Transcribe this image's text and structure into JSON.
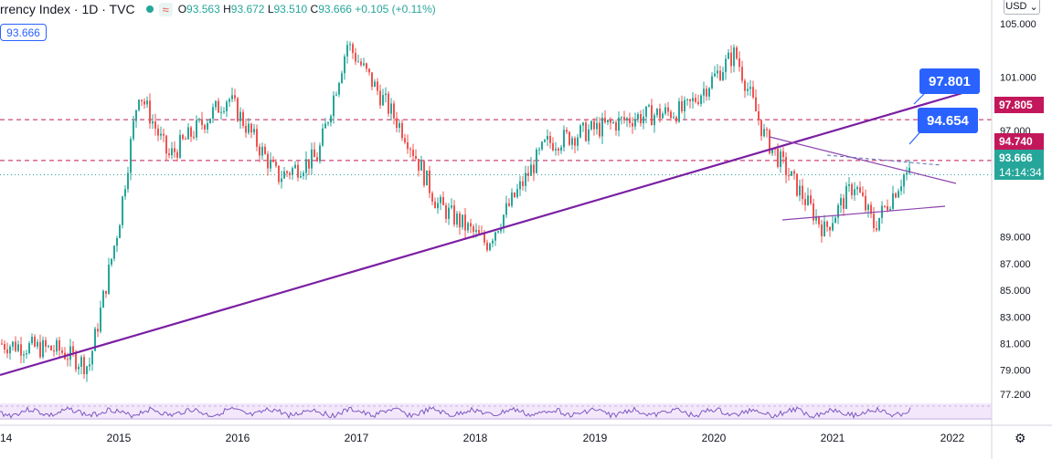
{
  "header": {
    "title": "rrency Index · 1D · TVC",
    "ohlc": {
      "open_label": "O",
      "open": "93.563",
      "high_label": "H",
      "high": "93.672",
      "low_label": "L",
      "low": "93.510",
      "close_label": "C",
      "close": "93.666",
      "change": "+0.105 (+0.11%)"
    },
    "last_value_badge": "93.666",
    "currency": "USD"
  },
  "price_tags": {
    "tag_97805": "97.805",
    "tag_94740": "94.740",
    "current_price": "93.666",
    "countdown": "14:14:34"
  },
  "callouts": {
    "upper": "97.801",
    "lower": "94.654"
  },
  "colors": {
    "up": "#26a69a",
    "down": "#ef5350",
    "trendline": "#7b1fa2",
    "horizontal_line": "#c2185b",
    "callout": "#2962ff",
    "rsi": "#7e57c2"
  },
  "icons": [
    "settings-gear-icon",
    "chevron-down-icon",
    "dot-icon",
    "waves-icon"
  ],
  "chart_data": {
    "type": "candlestick",
    "y_ticks": [
      "105.000",
      "101.000",
      "97.000",
      "89.000",
      "87.000",
      "85.000",
      "83.000",
      "81.000",
      "79.000",
      "77.200"
    ],
    "x_ticks": [
      "14",
      "2015",
      "2016",
      "2017",
      "2018",
      "2019",
      "2020",
      "2021",
      "2022"
    ],
    "ylim": [
      77.2,
      105.0
    ],
    "approx_closes": [
      {
        "x": "2014-07",
        "y": 80.5
      },
      {
        "x": "2014-10",
        "y": 79.3
      },
      {
        "x": "2015-01",
        "y": 90.0
      },
      {
        "x": "2015-03",
        "y": 100.0
      },
      {
        "x": "2015-06",
        "y": 95.0
      },
      {
        "x": "2015-12",
        "y": 99.5
      },
      {
        "x": "2016-05",
        "y": 93.5
      },
      {
        "x": "2016-09",
        "y": 95.0
      },
      {
        "x": "2016-12",
        "y": 103.5
      },
      {
        "x": "2017-06",
        "y": 96.5
      },
      {
        "x": "2017-09",
        "y": 91.5
      },
      {
        "x": "2018-02",
        "y": 88.5
      },
      {
        "x": "2018-08",
        "y": 96.0
      },
      {
        "x": "2019-05",
        "y": 98.0
      },
      {
        "x": "2019-10",
        "y": 98.5
      },
      {
        "x": "2020-03",
        "y": 102.8
      },
      {
        "x": "2020-06",
        "y": 96.5
      },
      {
        "x": "2020-12",
        "y": 89.5
      },
      {
        "x": "2021-03",
        "y": 93.0
      },
      {
        "x": "2021-05",
        "y": 89.8
      },
      {
        "x": "2021-08",
        "y": 93.666
      }
    ],
    "horizontal_lines": [
      97.805,
      94.74
    ],
    "current_price": 93.666
  }
}
